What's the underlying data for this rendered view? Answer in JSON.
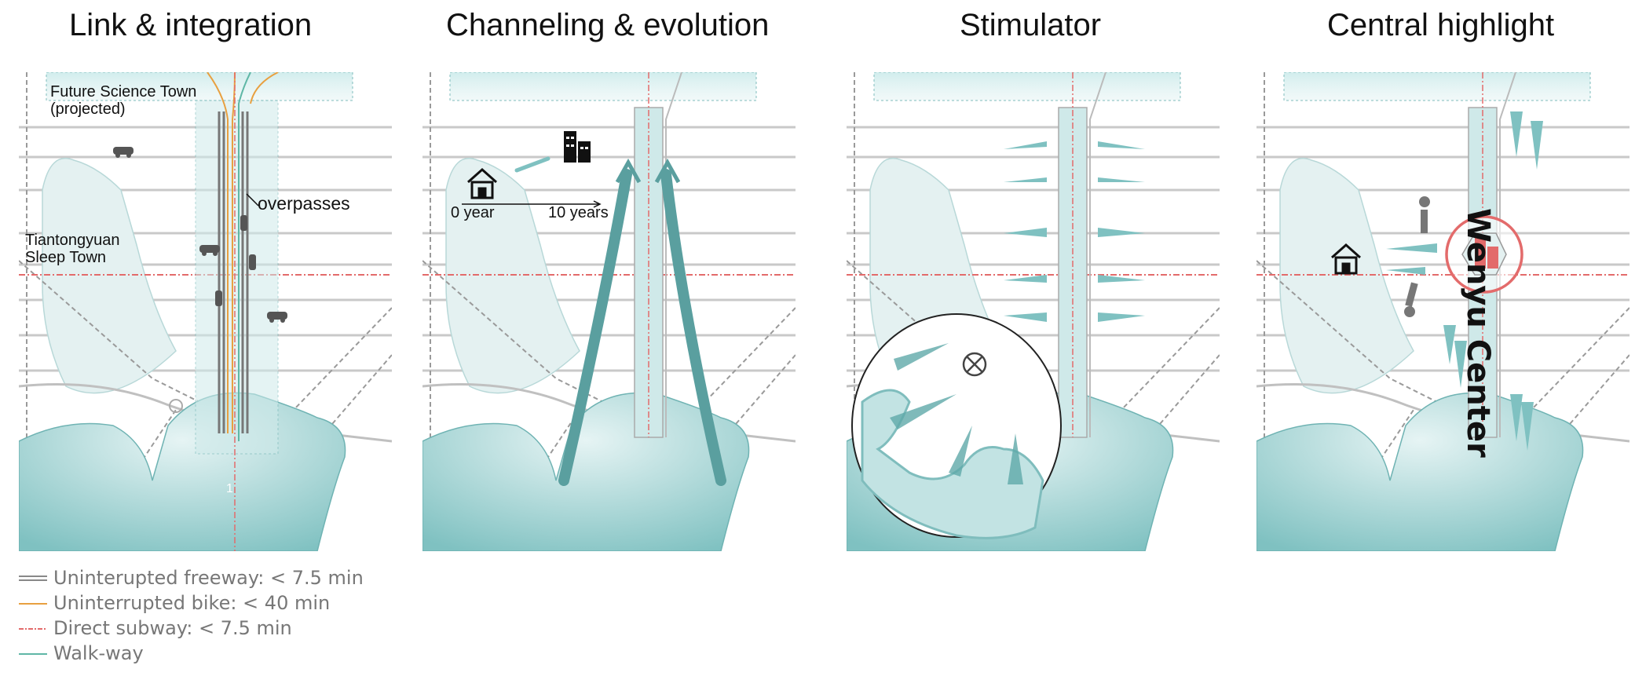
{
  "panels": [
    {
      "title": "Link & integration"
    },
    {
      "title": "Channeling & evolution"
    },
    {
      "title": "Stimulator"
    },
    {
      "title": "Central highlight"
    }
  ],
  "panel1": {
    "future_town": "Future Science Town\n(projected)",
    "sleep_town": "Tiantongyuan\nSleep Town",
    "overpasses": "overpasses",
    "marker_number": "1"
  },
  "panel2": {
    "start_label": "0 year",
    "end_label": "10 years"
  },
  "panel4": {
    "center_label": "Wenyu Center"
  },
  "legend": [
    {
      "label": "Uninterupted freeway: < 7.5 min",
      "color": "#888888",
      "style": "double"
    },
    {
      "label": "Uninterrupted bike: < 40 min",
      "color": "#e8a040",
      "style": "solid"
    },
    {
      "label": "Direct subway: < 7.5 min",
      "color": "#e36b6b",
      "style": "dashdot"
    },
    {
      "label": "Walk-way",
      "color": "#5fb7a6",
      "style": "solid"
    }
  ],
  "colors": {
    "teal": "#7fc1c1",
    "teal_light": "#d8eeee",
    "teal_dark": "#4a9595",
    "subway": "#e36b6b",
    "bike": "#e8a040",
    "road": "#c8c8c8",
    "rail": "#9a9a9a"
  }
}
